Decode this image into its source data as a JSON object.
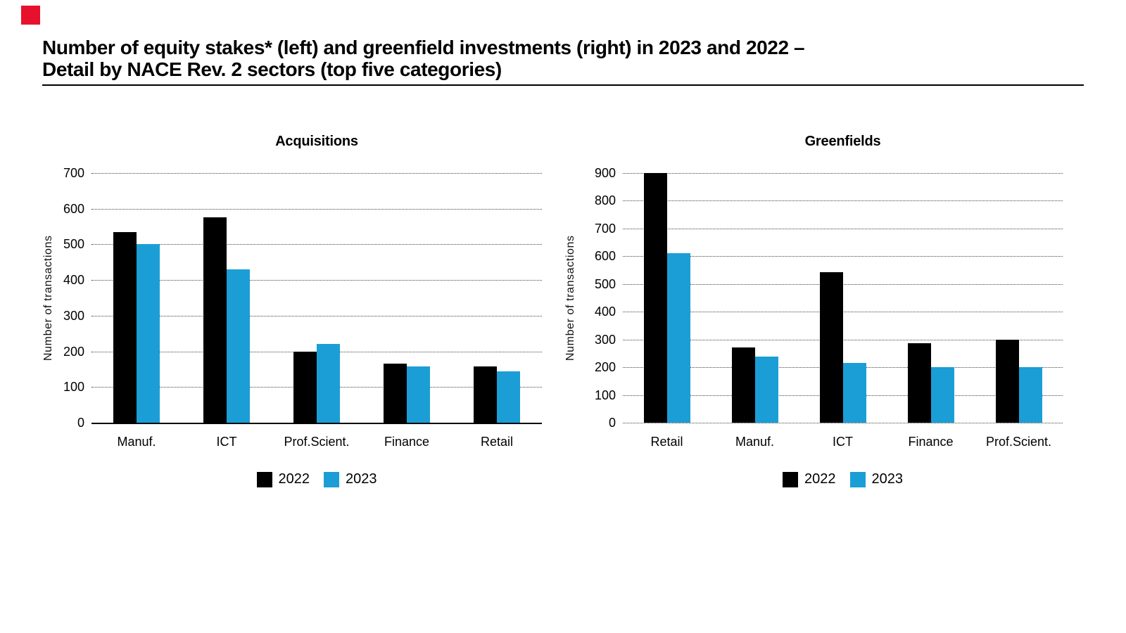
{
  "page": {
    "title_line1": "Number of equity stakes* (left) and greenfield investments (right) in 2023 and 2022 –",
    "title_line2": "Detail by NACE Rev. 2 sectors (top five categories)"
  },
  "brand": {
    "logo_color": "#e8112d"
  },
  "colors": {
    "series_2022": "#000000",
    "series_2023": "#1b9ed6"
  },
  "chart_data": [
    {
      "type": "bar",
      "title": "Acquisitions",
      "xlabel": "",
      "ylabel": "Number of transactions",
      "ylim": [
        0,
        700
      ],
      "yticks": [
        0,
        100,
        200,
        300,
        400,
        500,
        600,
        700
      ],
      "grid": "horizontal-dotted",
      "baseline_style": "solid",
      "legend_position": "bottom",
      "categories": [
        "Manuf.",
        "ICT",
        "Prof.Scient.",
        "Finance",
        "Retail"
      ],
      "series": [
        {
          "name": "2022",
          "color": "#000000",
          "values": [
            535,
            575,
            200,
            165,
            158
          ]
        },
        {
          "name": "2023",
          "color": "#1b9ed6",
          "values": [
            500,
            430,
            220,
            158,
            143
          ]
        }
      ]
    },
    {
      "type": "bar",
      "title": "Greenfields",
      "xlabel": "",
      "ylabel": "Number of transactions",
      "ylim": [
        0,
        900
      ],
      "yticks": [
        0,
        100,
        200,
        300,
        400,
        500,
        600,
        700,
        800,
        900
      ],
      "grid": "horizontal-dotted",
      "baseline_style": "dotted",
      "legend_position": "bottom",
      "categories": [
        "Retail",
        "Manuf.",
        "ICT",
        "Finance",
        "Prof.Scient."
      ],
      "series": [
        {
          "name": "2022",
          "color": "#000000",
          "values": [
            900,
            270,
            543,
            287,
            300
          ]
        },
        {
          "name": "2023",
          "color": "#1b9ed6",
          "values": [
            612,
            238,
            215,
            200,
            200
          ]
        }
      ]
    }
  ]
}
